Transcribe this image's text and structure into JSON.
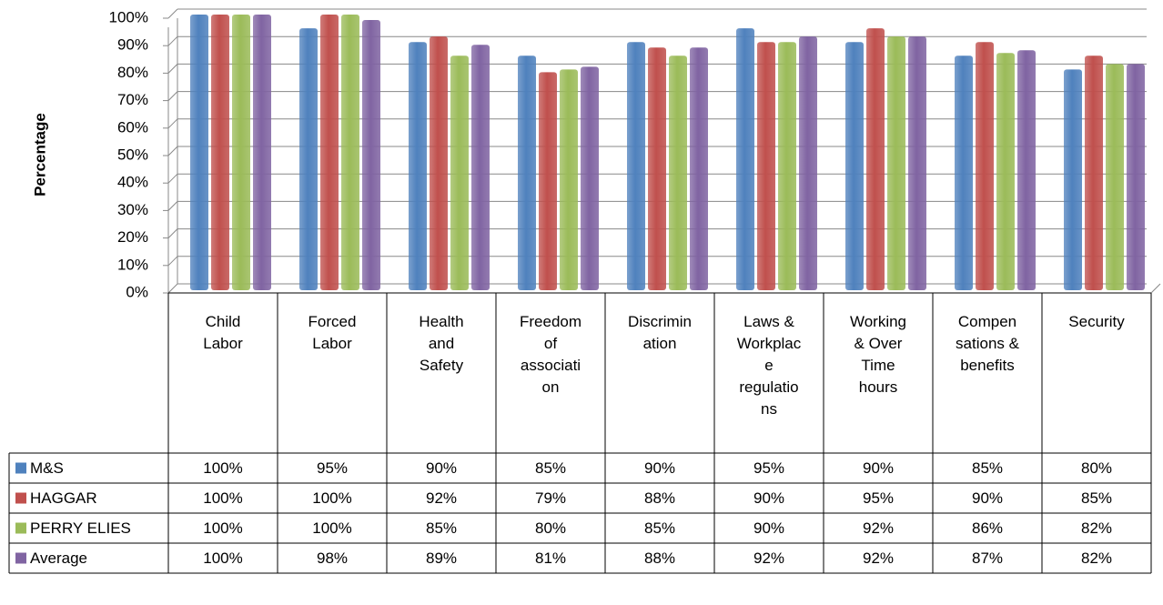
{
  "chart_data": {
    "type": "bar",
    "y_label": "Percentage",
    "categories": [
      "Child Labor",
      "Forced Labor",
      "Health and Safety",
      "Freedom of association",
      "Discrimination",
      "Laws & Workplace regulations",
      "Working & Over Time hours",
      "Compensations & benefits",
      "Security"
    ],
    "series": [
      {
        "name": "M&S",
        "color": "#4f81bd",
        "values": [
          100,
          95,
          90,
          85,
          90,
          95,
          90,
          85,
          80
        ],
        "value_labels": [
          "100%",
          "95%",
          "90%",
          "85%",
          "90%",
          "95%",
          "90%",
          "85%",
          "80%"
        ]
      },
      {
        "name": "HAGGAR",
        "color": "#c0504d",
        "values": [
          100,
          100,
          92,
          79,
          88,
          90,
          95,
          90,
          85
        ],
        "value_labels": [
          "100%",
          "100%",
          "92%",
          "79%",
          "88%",
          "90%",
          "95%",
          "90%",
          "85%"
        ]
      },
      {
        "name": "PERRY ELIES",
        "color": "#9bbb59",
        "values": [
          100,
          100,
          85,
          80,
          85,
          90,
          92,
          86,
          82
        ],
        "value_labels": [
          "100%",
          "100%",
          "85%",
          "80%",
          "85%",
          "90%",
          "92%",
          "86%",
          "82%"
        ]
      },
      {
        "name": "Average",
        "color": "#8064a2",
        "values": [
          100,
          98,
          89,
          81,
          88,
          92,
          92,
          87,
          82
        ],
        "value_labels": [
          "100%",
          "98%",
          "89%",
          "81%",
          "88%",
          "92%",
          "92%",
          "87%",
          "82%"
        ]
      }
    ],
    "ylim": [
      0,
      100
    ],
    "yticks": [
      {
        "value": 0,
        "label": "0%"
      },
      {
        "value": 10,
        "label": "10%"
      },
      {
        "value": 20,
        "label": "20%"
      },
      {
        "value": 30,
        "label": "30%"
      },
      {
        "value": 40,
        "label": "40%"
      },
      {
        "value": 50,
        "label": "50%"
      },
      {
        "value": 60,
        "label": "60%"
      },
      {
        "value": 70,
        "label": "70%"
      },
      {
        "value": 80,
        "label": "80%"
      },
      {
        "value": 90,
        "label": "90%"
      },
      {
        "value": 100,
        "label": "100%"
      }
    ],
    "grid": true
  }
}
